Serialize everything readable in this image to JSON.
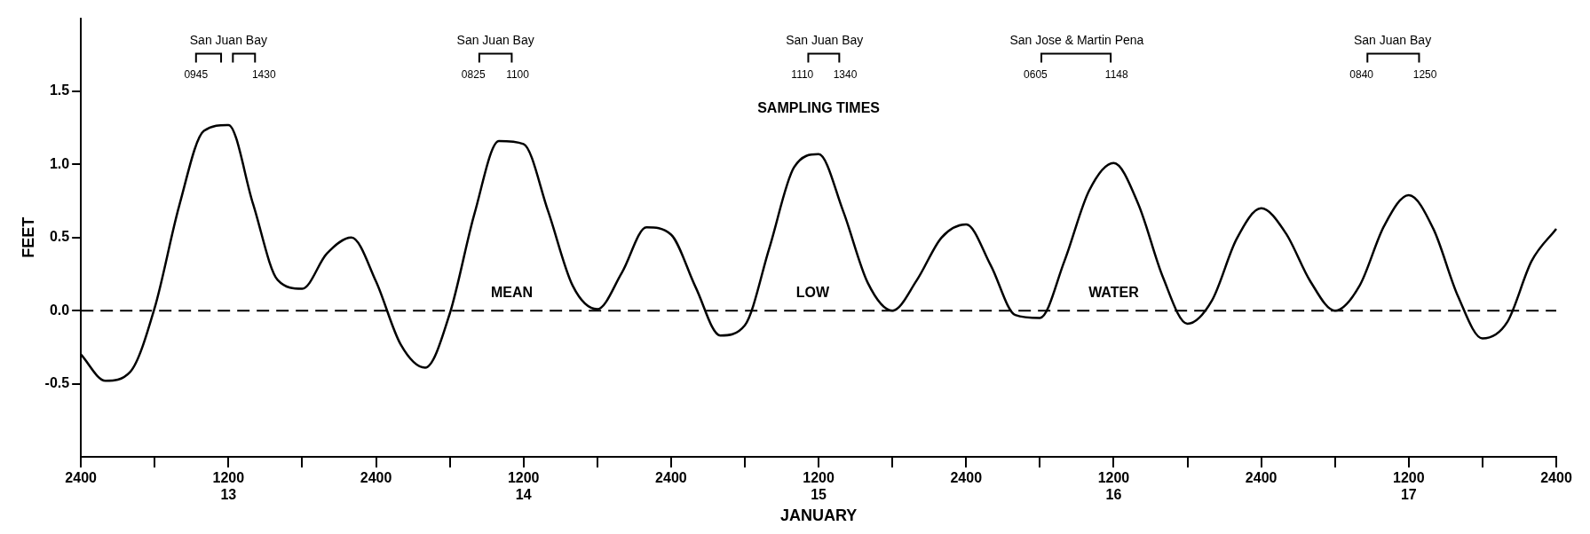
{
  "chart_data": {
    "type": "line",
    "xlabel": "JANUARY",
    "ylabel": "FEET",
    "categories": [
      "2400",
      null,
      null,
      null,
      null,
      null,
      "1200\n13",
      null,
      null,
      null,
      null,
      null,
      "2400",
      null,
      null,
      null,
      null,
      null,
      "1200\n14",
      null,
      null,
      null,
      null,
      null,
      "2400",
      null,
      null,
      null,
      null,
      null,
      "1200\n15",
      null,
      null,
      null,
      null,
      null,
      "2400",
      null,
      null,
      null,
      null,
      null,
      "1200\n16",
      null,
      null,
      null,
      null,
      null,
      "2400",
      null,
      null,
      null,
      null,
      null,
      "1200\n17",
      null,
      null,
      null,
      null,
      null,
      "2400"
    ],
    "series": [
      {
        "color": "#000000",
        "values": [
          -0.3,
          -0.48,
          -0.42,
          0.02,
          0.72,
          1.23,
          1.27,
          0.73,
          0.21,
          0.15,
          0.39,
          0.5,
          0.2,
          -0.23,
          -0.39,
          -0.02,
          0.66,
          1.16,
          1.14,
          0.68,
          0.17,
          0.01,
          0.26,
          0.57,
          0.52,
          0.16,
          -0.17,
          -0.1,
          0.43,
          0.98,
          1.07,
          0.68,
          0.19,
          0.0,
          0.21,
          0.5,
          0.59,
          0.31,
          -0.03,
          -0.05,
          0.34,
          0.82,
          1.01,
          0.73,
          0.23,
          -0.09,
          0.07,
          0.49,
          0.7,
          0.53,
          0.2,
          0.0,
          0.17,
          0.58,
          0.79,
          0.56,
          0.1,
          -0.19,
          -0.08,
          0.34,
          0.56
        ]
      }
    ],
    "ylim": [
      -1.0,
      2.0
    ],
    "yticks": [
      {
        "value": -0.5,
        "label": "-0.5"
      },
      {
        "value": 0,
        "label": "0.0"
      },
      {
        "value": 0.5,
        "label": "0.5"
      },
      {
        "value": 1.0,
        "label": "1.0"
      },
      {
        "value": 1.5,
        "label": "1.5"
      }
    ],
    "grid": false,
    "legend": false,
    "marker": "none",
    "line_style": "solid",
    "ref_lines": [
      {
        "axis": "y",
        "value": 0,
        "line_style": "dashed",
        "color": "#000000"
      }
    ],
    "annotations": [
      "San Juan Bay",
      "0945",
      "1430",
      "San Juan Bay",
      "0825",
      "1100",
      "San Juan Bay",
      "1110",
      "1340",
      "San Jose & Martin Pena",
      "0605",
      "1148",
      "San Juan Bay",
      "0840",
      "1250",
      "SAMPLING TIMES",
      "MEAN",
      "LOW",
      "WATER"
    ]
  }
}
